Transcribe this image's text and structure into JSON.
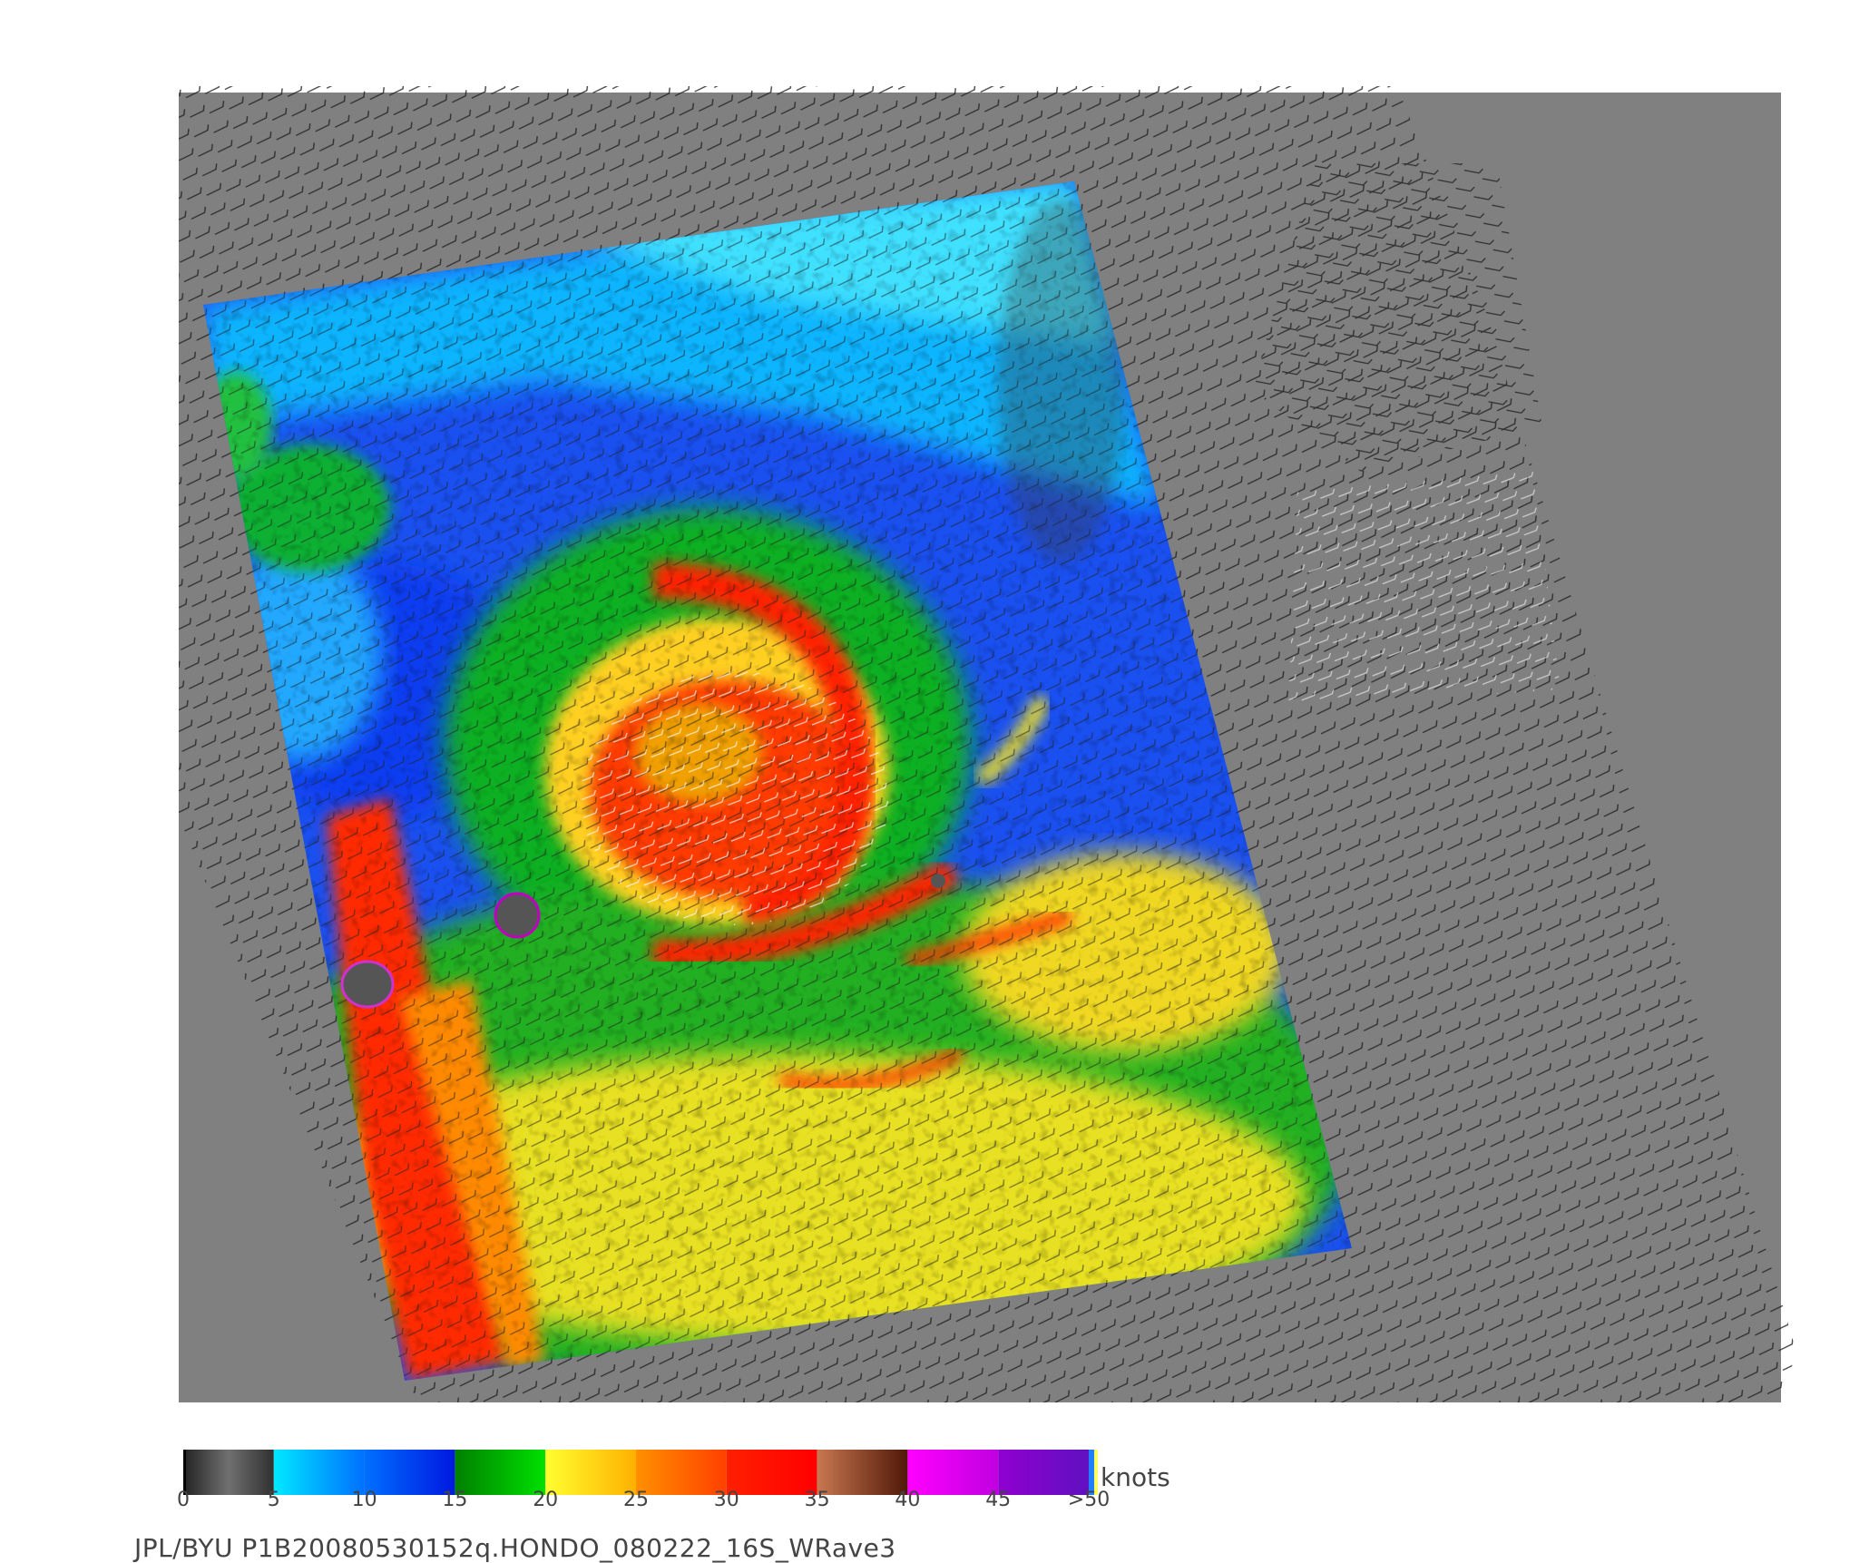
{
  "colorbar": {
    "units": "knots",
    "ticks": [
      "0",
      "5",
      "10",
      "15",
      "20",
      "25",
      "30",
      "35",
      "40",
      "45",
      ">50"
    ],
    "tick_values": [
      0,
      5,
      10,
      15,
      20,
      25,
      30,
      35,
      40,
      45,
      50
    ],
    "segments": [
      {
        "from": 0,
        "to": 5,
        "colors": [
          "#222222",
          "#707070",
          "#303030"
        ]
      },
      {
        "from": 5,
        "to": 10,
        "colors": [
          "#00e8ff",
          "#0070ff"
        ]
      },
      {
        "from": 10,
        "to": 15,
        "colors": [
          "#0070ff",
          "#0018e0"
        ]
      },
      {
        "from": 15,
        "to": 20,
        "colors": [
          "#008000",
          "#00e000"
        ]
      },
      {
        "from": 20,
        "to": 25,
        "colors": [
          "#ffff30",
          "#ffb000"
        ]
      },
      {
        "from": 25,
        "to": 30,
        "colors": [
          "#ff9000",
          "#ff4000"
        ]
      },
      {
        "from": 30,
        "to": 35,
        "colors": [
          "#ff2000",
          "#ff0000"
        ]
      },
      {
        "from": 35,
        "to": 40,
        "colors": [
          "#c87850",
          "#501808"
        ]
      },
      {
        "from": 40,
        "to": 45,
        "colors": [
          "#ff00ff",
          "#c000e0"
        ]
      },
      {
        "from": 45,
        "to": 50,
        "colors": [
          "#9000d0",
          "#6010c0"
        ]
      }
    ]
  },
  "footer": {
    "credit": "JPL/BYU  P1B20080530152q.HONDO_080222_16S_WRave3"
  },
  "map": {
    "background_color": "#808080",
    "swath_colors_note_free": true
  }
}
